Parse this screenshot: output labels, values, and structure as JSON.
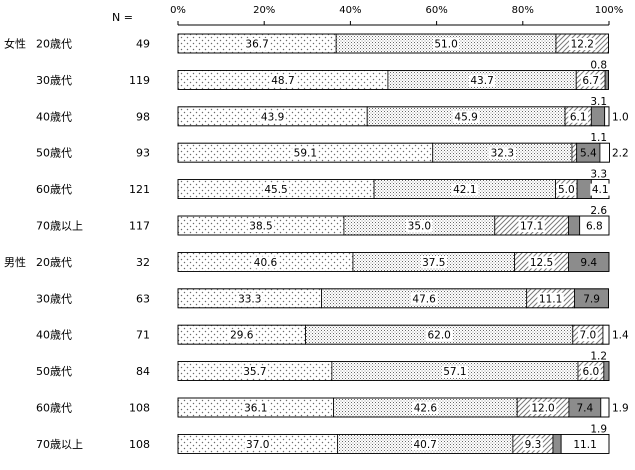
{
  "chart_data": {
    "type": "stacked-bar-horizontal",
    "n_header": "N =",
    "x_ticks": [
      "0%",
      "20%",
      "40%",
      "60%",
      "80%",
      "100%"
    ],
    "xlim": [
      0,
      100
    ],
    "groups": [
      {
        "label": "女性",
        "start_row": 0
      },
      {
        "label": "男性",
        "start_row": 6
      }
    ],
    "rows": [
      {
        "category": "20歳代",
        "n": "49",
        "values": [
          36.7,
          51.0,
          12.2,
          0,
          0
        ],
        "labels": [
          "36.7",
          "51.0",
          "12.2",
          "",
          ""
        ],
        "top": "",
        "right": ""
      },
      {
        "category": "30歳代",
        "n": "119",
        "values": [
          48.7,
          43.7,
          6.7,
          0.8,
          0
        ],
        "labels": [
          "48.7",
          "43.7",
          "6.7",
          "",
          ""
        ],
        "top": "0.8",
        "right": ""
      },
      {
        "category": "40歳代",
        "n": "98",
        "values": [
          43.9,
          45.9,
          6.1,
          3.1,
          1.0
        ],
        "labels": [
          "43.9",
          "45.9",
          "6.1",
          "",
          ""
        ],
        "top": "3.1",
        "right": "1.0"
      },
      {
        "category": "50歳代",
        "n": "93",
        "values": [
          59.1,
          32.3,
          1.1,
          5.4,
          2.2
        ],
        "labels": [
          "59.1",
          "32.3",
          "",
          "5.4",
          ""
        ],
        "top": "1.1",
        "right": "2.2"
      },
      {
        "category": "60歳代",
        "n": "121",
        "values": [
          45.5,
          42.1,
          5.0,
          3.3,
          4.1
        ],
        "labels": [
          "45.5",
          "42.1",
          "5.0",
          "",
          "4.1"
        ],
        "top": "3.3",
        "right": ""
      },
      {
        "category": "70歳以上",
        "n": "117",
        "values": [
          38.5,
          35.0,
          17.1,
          2.6,
          6.8
        ],
        "labels": [
          "38.5",
          "35.0",
          "17.1",
          "",
          "6.8"
        ],
        "top": "2.6",
        "right": ""
      },
      {
        "category": "20歳代",
        "n": "32",
        "values": [
          40.6,
          37.5,
          12.5,
          9.4,
          0
        ],
        "labels": [
          "40.6",
          "37.5",
          "12.5",
          "9.4",
          ""
        ],
        "top": "",
        "right": ""
      },
      {
        "category": "30歳代",
        "n": "63",
        "values": [
          33.3,
          47.6,
          11.1,
          7.9,
          0
        ],
        "labels": [
          "33.3",
          "47.6",
          "11.1",
          "7.9",
          ""
        ],
        "top": "",
        "right": ""
      },
      {
        "category": "40歳代",
        "n": "71",
        "values": [
          29.6,
          62.0,
          7.0,
          0,
          1.4
        ],
        "labels": [
          "29.6",
          "62.0",
          "7.0",
          "",
          ""
        ],
        "top": "",
        "right": "1.4"
      },
      {
        "category": "50歳代",
        "n": "84",
        "values": [
          35.7,
          57.1,
          6.0,
          1.2,
          0
        ],
        "labels": [
          "35.7",
          "57.1",
          "6.0",
          "",
          ""
        ],
        "top": "1.2",
        "right": ""
      },
      {
        "category": "60歳代",
        "n": "108",
        "values": [
          36.1,
          42.6,
          12.0,
          7.4,
          1.9
        ],
        "labels": [
          "36.1",
          "42.6",
          "12.0",
          "7.4",
          ""
        ],
        "top": "",
        "right": "1.9"
      },
      {
        "category": "70歳以上",
        "n": "108",
        "values": [
          37.0,
          40.7,
          9.3,
          1.9,
          11.1
        ],
        "labels": [
          "37.0",
          "40.7",
          "9.3",
          "",
          "11.1"
        ],
        "top": "1.9",
        "right": ""
      }
    ],
    "segment_styles": [
      "cross-dots",
      "fine-dots",
      "diagonal-hatch",
      "solid-gray",
      "white"
    ],
    "colors": {
      "axis": "#000000",
      "solid_gray": "#8c8c8c",
      "hatch": "#7a7a7a",
      "dots": "#6a6a6a"
    },
    "grid": false,
    "legend": "none"
  }
}
